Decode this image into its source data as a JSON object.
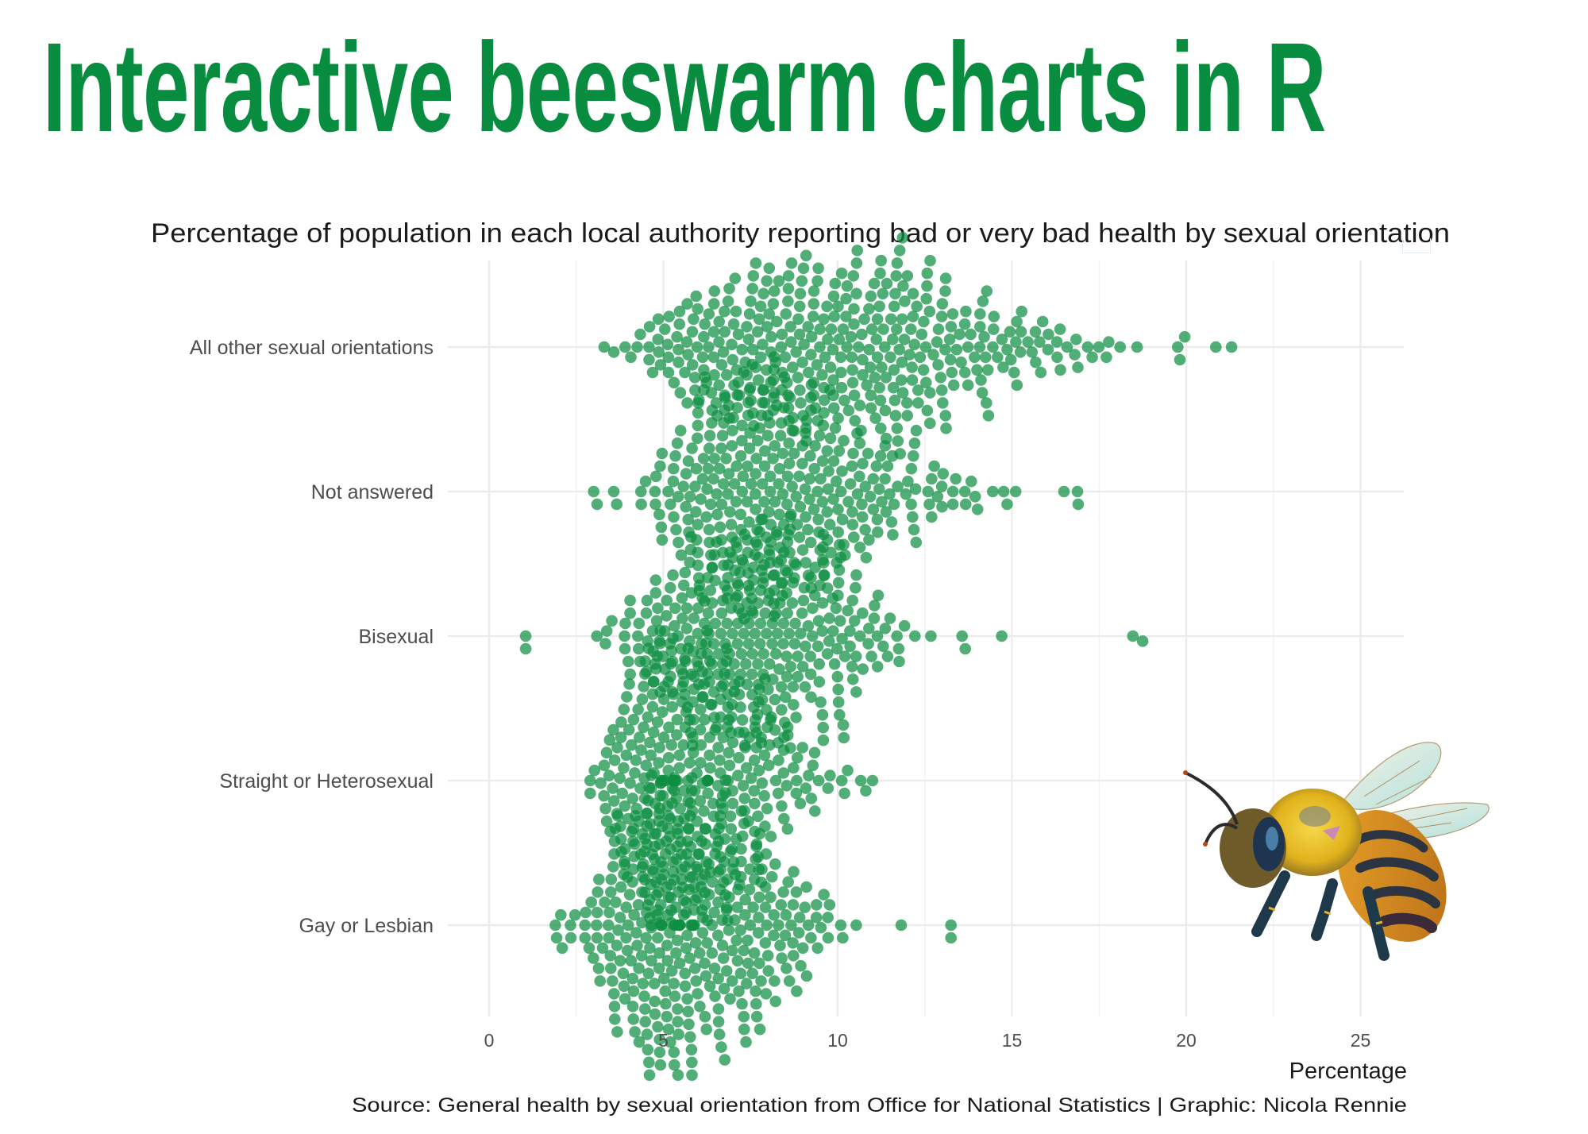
{
  "header": {
    "title": "Interactive beeswarm charts in R"
  },
  "colors": {
    "title": "#088c3f",
    "point": "#0e8f43",
    "text": "#1a1a1a",
    "axis_text": "#4d4d4d",
    "grid": "#ebebeb"
  },
  "chart_data": {
    "type": "scatter",
    "subtype": "beeswarm",
    "title": "Percentage of population in each local authority reporting bad or very bad health by sexual orientation",
    "xlabel": "Percentage",
    "ylabel": "",
    "caption": "Source: General health by sexual orientation from Office for National Statistics | Graphic: Nicola Rennie",
    "xlim": [
      0,
      26.2
    ],
    "x_ticks": [
      0,
      5,
      10,
      15,
      20,
      25
    ],
    "x_tick_labels": [
      "0",
      "5",
      "10",
      "15",
      "20",
      "25"
    ],
    "grid": true,
    "legend": "none",
    "categories": [
      "All other sexual orientations",
      "Not answered",
      "Bisexual",
      "Straight or Heterosexual",
      "Gay or Lesbian"
    ],
    "bin_width": 0.5,
    "series": [
      {
        "name": "All other sexual orientations",
        "min": 3.3,
        "max": 21.3,
        "binned_counts": {
          "3.5": 1,
          "4.0": 3,
          "4.5": 5,
          "5.0": 9,
          "5.5": 12,
          "6.0": 14,
          "6.5": 15,
          "7.0": 17,
          "7.5": 19,
          "8.0": 19,
          "8.5": 20,
          "9.0": 19,
          "9.5": 19,
          "10.0": 20,
          "10.5": 21,
          "11.0": 21,
          "11.5": 22,
          "12.0": 21,
          "12.5": 18,
          "13.0": 15,
          "13.5": 12,
          "14.0": 11,
          "14.5": 10,
          "15.0": 8,
          "15.5": 6,
          "16.0": 5,
          "16.5": 5,
          "17.0": 4,
          "17.5": 3,
          "18.0": 2,
          "18.5": 1,
          "20.0": 3,
          "21.0": 1
        }
      },
      {
        "name": "Not answered",
        "min": 3.0,
        "max": 16.9,
        "binned_counts": {
          "3.0": 1,
          "3.5": 2,
          "4.5": 3,
          "5.0": 10,
          "5.5": 16,
          "6.0": 22,
          "6.5": 26,
          "7.0": 28,
          "7.5": 31,
          "8.0": 32,
          "8.5": 29,
          "9.0": 25,
          "9.5": 22,
          "10.0": 19,
          "10.5": 15,
          "11.0": 13,
          "11.5": 11,
          "12.0": 9,
          "12.5": 6,
          "13.0": 5,
          "13.5": 5,
          "14.0": 3,
          "14.5": 1,
          "15.0": 3,
          "16.5": 1,
          "17.0": 1
        }
      },
      {
        "name": "Bisexual",
        "min": 1.05,
        "max": 18.75,
        "binned_counts": {
          "1.0": 1,
          "3.0": 1,
          "3.5": 3,
          "4.0": 7,
          "4.5": 11,
          "5.0": 15,
          "5.5": 18,
          "6.0": 21,
          "6.5": 24,
          "7.0": 26,
          "7.5": 28,
          "8.0": 30,
          "8.5": 29,
          "9.0": 18,
          "9.5": 20,
          "10.0": 20,
          "10.5": 14,
          "11.0": 8,
          "11.5": 5,
          "12.0": 4,
          "12.5": 1,
          "13.5": 2,
          "14.5": 1,
          "18.5": 1
        }
      },
      {
        "name": "Straight or Heterosexual",
        "min": 2.9,
        "max": 11.0,
        "binned_counts": {
          "3.0": 3,
          "3.5": 14,
          "4.0": 26,
          "4.5": 36,
          "5.0": 42,
          "5.5": 40,
          "6.0": 38,
          "6.5": 36,
          "7.0": 29,
          "7.5": 21,
          "8.0": 14,
          "8.5": 11,
          "9.0": 8,
          "9.5": 5,
          "10.0": 3,
          "10.5": 2,
          "11.0": 1
        }
      },
      {
        "name": "Gay or Lesbian",
        "min": 1.9,
        "max": 13.25,
        "binned_counts": {
          "2.0": 3,
          "2.5": 4,
          "3.0": 12,
          "3.5": 22,
          "4.0": 29,
          "4.5": 35,
          "5.0": 40,
          "5.5": 43,
          "6.0": 36,
          "6.5": 29,
          "7.0": 24,
          "7.5": 27,
          "8.0": 21,
          "8.5": 15,
          "9.0": 11,
          "9.5": 7,
          "10.0": 3,
          "10.5": 1,
          "12.0": 1,
          "13.5": 1
        }
      }
    ]
  }
}
